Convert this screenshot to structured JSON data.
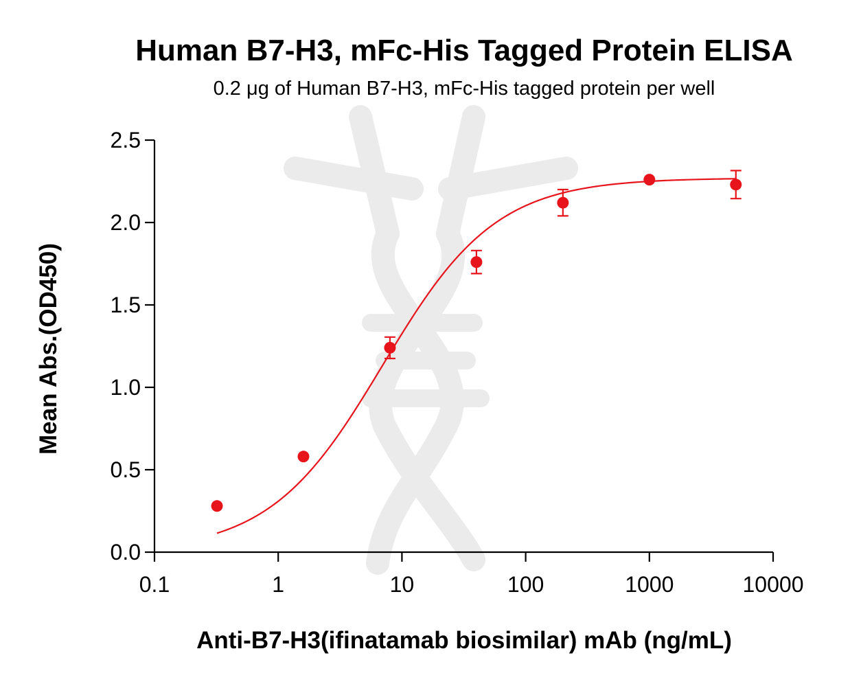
{
  "chart_data": {
    "type": "scatter",
    "title": "Human B7-H3, mFc-His Tagged Protein ELISA",
    "subtitle": "0.2 μg of Human B7-H3, mFc-His tagged protein per well",
    "xlabel": "Anti-B7-H3(ifinatamab biosimilar) mAb (ng/mL)",
    "ylabel": "Mean Abs.(OD450)",
    "x_scale": "log",
    "xlim": [
      0.1,
      10000
    ],
    "ylim": [
      0.0,
      2.5
    ],
    "x_ticks": [
      "0.1",
      "1",
      "10",
      "100",
      "1000",
      "10000"
    ],
    "y_ticks": [
      "0.0",
      "0.5",
      "1.0",
      "1.5",
      "2.0",
      "2.5"
    ],
    "grid": false,
    "legend": "none",
    "color": "#e8141c",
    "watermark_color": "#ebebeb",
    "series": [
      {
        "x": [
          0.32,
          1.6,
          8,
          40,
          200,
          1000,
          5000
        ],
        "y": [
          0.28,
          0.58,
          1.24,
          1.76,
          2.12,
          2.26,
          2.23
        ],
        "error": [
          0.0,
          0.0,
          0.065,
          0.07,
          0.08,
          0.0,
          0.085
        ]
      }
    ],
    "fit_curve": {
      "model": "4PL",
      "bottom": 0.0,
      "top": 2.27,
      "ec50": 7.0,
      "hill": 0.95
    }
  }
}
